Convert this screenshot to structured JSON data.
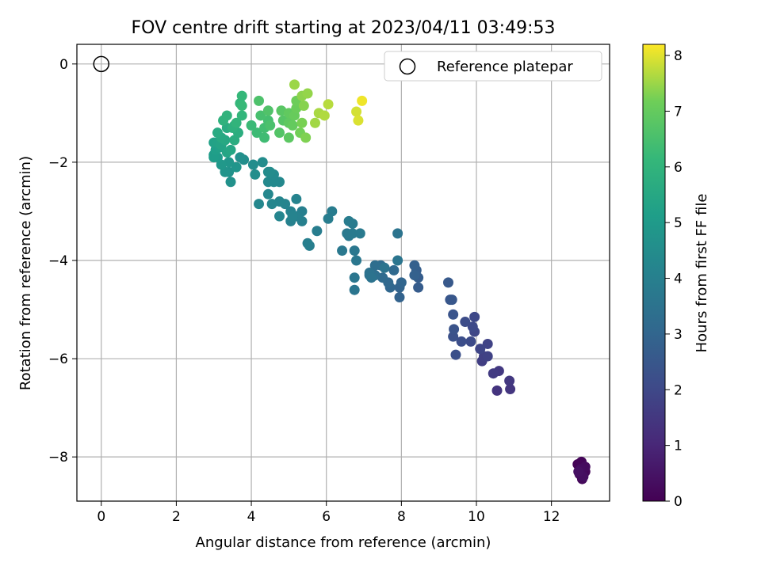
{
  "chart_data": {
    "type": "scatter",
    "title": "FOV centre drift starting at 2023/04/11 03:49:53",
    "xlabel": "Angular distance from reference (arcmin)",
    "ylabel": "Rotation from reference (arcmin)",
    "xlim": [
      -0.65,
      13.55
    ],
    "ylim": [
      -8.9,
      0.4
    ],
    "xticks": [
      0,
      2,
      4,
      6,
      8,
      10,
      12
    ],
    "yticks": [
      0,
      -2,
      -4,
      -6,
      -8
    ],
    "grid": true,
    "legend": {
      "placement": "top-right",
      "label": "Reference platepar"
    },
    "reference_point": {
      "x": 0,
      "y": 0
    },
    "colorbar": {
      "label": "Hours from first FF file",
      "range": [
        0,
        8.2
      ],
      "ticks": [
        0,
        1,
        2,
        3,
        4,
        5,
        6,
        7,
        8
      ],
      "colormap": "viridis"
    },
    "points": [
      [
        12.7,
        -8.15,
        0.05
      ],
      [
        12.8,
        -8.1,
        0.1
      ],
      [
        12.85,
        -8.2,
        0.1
      ],
      [
        12.9,
        -8.3,
        0.15
      ],
      [
        12.75,
        -8.35,
        0.2
      ],
      [
        12.82,
        -8.45,
        0.2
      ],
      [
        12.9,
        -8.2,
        0.25
      ],
      [
        12.78,
        -8.25,
        0.3
      ],
      [
        12.85,
        -8.4,
        0.35
      ],
      [
        12.72,
        -8.3,
        0.4
      ],
      [
        10.55,
        -6.65,
        1.4
      ],
      [
        10.9,
        -6.62,
        1.45
      ],
      [
        10.88,
        -6.45,
        1.5
      ],
      [
        10.6,
        -6.25,
        1.55
      ],
      [
        10.45,
        -6.3,
        1.6
      ],
      [
        10.15,
        -6.05,
        1.7
      ],
      [
        10.2,
        -5.95,
        1.75
      ],
      [
        10.3,
        -5.95,
        1.8
      ],
      [
        10.3,
        -5.7,
        1.85
      ],
      [
        10.1,
        -5.8,
        1.9
      ],
      [
        9.95,
        -5.45,
        1.95
      ],
      [
        9.95,
        -5.15,
        2.0
      ],
      [
        9.9,
        -5.35,
        2.05
      ],
      [
        9.85,
        -5.65,
        2.1
      ],
      [
        9.7,
        -5.25,
        2.15
      ],
      [
        9.6,
        -5.65,
        2.2
      ],
      [
        9.45,
        -5.92,
        2.25
      ],
      [
        9.38,
        -5.55,
        2.3
      ],
      [
        9.4,
        -5.4,
        2.35
      ],
      [
        9.38,
        -5.1,
        2.4
      ],
      [
        9.3,
        -4.8,
        2.45
      ],
      [
        9.35,
        -4.8,
        2.5
      ],
      [
        9.25,
        -4.45,
        2.55
      ],
      [
        8.45,
        -4.55,
        2.65
      ],
      [
        8.45,
        -4.35,
        2.7
      ],
      [
        8.4,
        -4.2,
        2.75
      ],
      [
        8.35,
        -4.1,
        2.8
      ],
      [
        8.35,
        -4.3,
        2.85
      ],
      [
        7.95,
        -4.75,
        2.9
      ],
      [
        7.95,
        -4.55,
        2.95
      ],
      [
        8.0,
        -4.45,
        3.0
      ],
      [
        7.7,
        -4.55,
        3.05
      ],
      [
        7.65,
        -4.45,
        3.1
      ],
      [
        7.8,
        -4.2,
        3.15
      ],
      [
        7.5,
        -4.35,
        3.2
      ],
      [
        7.45,
        -4.1,
        3.25
      ],
      [
        7.3,
        -4.1,
        3.3
      ],
      [
        7.3,
        -4.3,
        3.35
      ],
      [
        7.15,
        -4.3,
        3.4
      ],
      [
        7.15,
        -4.25,
        3.45
      ],
      [
        7.2,
        -4.35,
        3.5
      ],
      [
        7.55,
        -4.15,
        3.55
      ],
      [
        7.9,
        -4.0,
        3.6
      ],
      [
        7.9,
        -3.45,
        3.55
      ],
      [
        6.75,
        -4.6,
        3.6
      ],
      [
        6.75,
        -4.35,
        3.62
      ],
      [
        6.8,
        -4.0,
        3.65
      ],
      [
        6.75,
        -3.8,
        3.68
      ],
      [
        6.42,
        -3.8,
        3.7
      ],
      [
        6.6,
        -3.5,
        3.72
      ],
      [
        6.55,
        -3.45,
        3.75
      ],
      [
        6.7,
        -3.45,
        3.78
      ],
      [
        6.9,
        -3.45,
        3.8
      ],
      [
        6.7,
        -3.25,
        3.82
      ],
      [
        6.6,
        -3.2,
        3.85
      ],
      [
        6.15,
        -3.0,
        3.88
      ],
      [
        6.05,
        -3.15,
        3.9
      ],
      [
        5.75,
        -3.4,
        3.92
      ],
      [
        5.55,
        -3.7,
        3.95
      ],
      [
        5.5,
        -3.65,
        3.97
      ],
      [
        5.35,
        -3.0,
        4.0
      ],
      [
        5.35,
        -3.2,
        4.02
      ],
      [
        5.2,
        -3.1,
        4.05
      ],
      [
        5.05,
        -3.2,
        4.07
      ],
      [
        5.05,
        -3.0,
        4.1
      ],
      [
        5.1,
        -3.1,
        4.12
      ],
      [
        5.2,
        -2.75,
        4.15
      ],
      [
        4.9,
        -2.85,
        4.17
      ],
      [
        4.75,
        -3.1,
        4.2
      ],
      [
        4.75,
        -2.8,
        4.22
      ],
      [
        4.55,
        -2.85,
        4.25
      ],
      [
        4.45,
        -2.65,
        4.27
      ],
      [
        4.2,
        -2.85,
        4.3
      ],
      [
        4.75,
        -2.4,
        4.32
      ],
      [
        4.6,
        -2.4,
        4.35
      ],
      [
        4.45,
        -2.4,
        4.37
      ],
      [
        4.6,
        -2.25,
        4.4
      ],
      [
        4.45,
        -2.2,
        4.42
      ],
      [
        4.5,
        -2.2,
        4.45
      ],
      [
        4.3,
        -2.0,
        4.47
      ],
      [
        4.1,
        -2.25,
        4.5
      ],
      [
        4.05,
        -2.05,
        4.52
      ],
      [
        3.8,
        -1.95,
        4.55
      ],
      [
        3.7,
        -1.9,
        4.6
      ],
      [
        3.45,
        -2.4,
        4.65
      ],
      [
        3.4,
        -2.2,
        4.7
      ],
      [
        3.3,
        -2.2,
        4.75
      ],
      [
        3.6,
        -2.1,
        4.8
      ],
      [
        3.4,
        -2.0,
        4.85
      ],
      [
        3.2,
        -2.05,
        4.9
      ],
      [
        3.1,
        -1.9,
        5.0
      ],
      [
        3.0,
        -1.85,
        5.05
      ],
      [
        3.0,
        -1.9,
        5.1
      ],
      [
        3.05,
        -1.75,
        5.15
      ],
      [
        3.15,
        -1.7,
        5.2
      ],
      [
        3.0,
        -1.6,
        5.25
      ],
      [
        3.1,
        -1.6,
        5.3
      ],
      [
        3.2,
        -1.65,
        5.35
      ],
      [
        3.35,
        -1.8,
        5.4
      ],
      [
        3.45,
        -1.75,
        5.45
      ],
      [
        3.3,
        -1.55,
        5.5
      ],
      [
        3.2,
        -1.5,
        5.55
      ],
      [
        3.1,
        -1.4,
        5.6
      ],
      [
        3.35,
        -1.3,
        5.65
      ],
      [
        3.55,
        -1.55,
        5.7
      ],
      [
        3.65,
        -1.4,
        5.75
      ],
      [
        3.55,
        -1.25,
        5.8
      ],
      [
        3.5,
        -1.3,
        5.85
      ],
      [
        3.25,
        -1.15,
        5.9
      ],
      [
        3.35,
        -1.05,
        5.95
      ],
      [
        3.6,
        -1.2,
        6.0
      ],
      [
        3.75,
        -1.05,
        6.05
      ],
      [
        3.7,
        -0.8,
        6.1
      ],
      [
        3.75,
        -0.65,
        6.15
      ],
      [
        3.75,
        -0.85,
        6.2
      ],
      [
        4.0,
        -1.25,
        6.25
      ],
      [
        4.15,
        -1.4,
        6.3
      ],
      [
        4.35,
        -1.5,
        6.35
      ],
      [
        4.35,
        -1.3,
        6.4
      ],
      [
        4.45,
        -1.15,
        6.45
      ],
      [
        4.25,
        -1.05,
        6.5
      ],
      [
        4.5,
        -1.25,
        6.55
      ],
      [
        4.2,
        -0.75,
        6.6
      ],
      [
        4.45,
        -0.95,
        6.65
      ],
      [
        4.75,
        -1.4,
        6.7
      ],
      [
        4.85,
        -1.15,
        6.75
      ],
      [
        4.8,
        -0.95,
        6.8
      ],
      [
        5.0,
        -1.5,
        6.85
      ],
      [
        5.0,
        -1.2,
        6.9
      ],
      [
        5.0,
        -1.0,
        6.95
      ],
      [
        5.1,
        -1.25,
        7.0
      ],
      [
        5.15,
        -1.05,
        7.05
      ],
      [
        5.2,
        -0.9,
        7.1
      ],
      [
        5.2,
        -0.75,
        7.15
      ],
      [
        5.3,
        -1.4,
        7.2
      ],
      [
        5.35,
        -1.2,
        7.25
      ],
      [
        5.45,
        -1.5,
        7.3
      ],
      [
        5.4,
        -0.85,
        7.35
      ],
      [
        5.35,
        -0.65,
        7.4
      ],
      [
        5.5,
        -0.6,
        7.45
      ],
      [
        5.15,
        -0.42,
        7.5
      ],
      [
        5.7,
        -1.2,
        7.55
      ],
      [
        5.8,
        -1.0,
        7.6
      ],
      [
        5.95,
        -1.05,
        7.65
      ],
      [
        6.05,
        -0.82,
        7.7
      ],
      [
        6.8,
        -0.97,
        7.9
      ],
      [
        6.85,
        -1.15,
        7.95
      ],
      [
        6.95,
        -0.75,
        8.1
      ]
    ]
  }
}
